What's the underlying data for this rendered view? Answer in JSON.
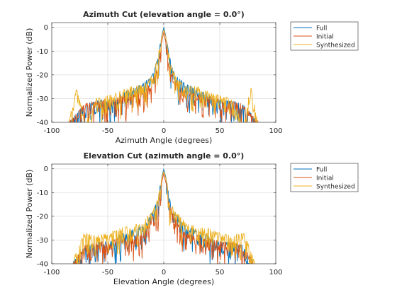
{
  "colors": {
    "full": "#0072BD",
    "initial": "#D95319",
    "synthesized": "#EDB120",
    "grid": "#dfdfdf",
    "axis": "#262626"
  },
  "chart_data": [
    {
      "type": "line",
      "title": "Azimuth Cut (elevation angle = 0.0°)",
      "xlabel": "Azimuth Angle (degrees)",
      "ylabel": "Normalized Power (dB)",
      "xlim": [
        -100,
        100
      ],
      "ylim": [
        -40,
        2
      ],
      "xticks": [
        "-100",
        "-50",
        "0",
        "50",
        "100"
      ],
      "yticks": [
        "0",
        "-10",
        "-20",
        "-30",
        "-40"
      ],
      "grid": true,
      "legend_position": "outside-top-right",
      "series": [
        {
          "name": "Full",
          "x": [
            -85,
            -70,
            -60,
            -45,
            -40,
            -30,
            -20,
            -15,
            -10,
            -5,
            -3,
            0,
            3,
            5,
            10,
            15,
            20,
            30,
            40,
            45,
            60,
            70,
            85
          ],
          "values": [
            -40,
            -32,
            -31,
            -30,
            -28,
            -26,
            -24,
            -22,
            -20,
            -12,
            -6,
            0,
            -6,
            -12,
            -20,
            -22,
            -24,
            -26,
            -28,
            -30,
            -31,
            -32,
            -40
          ]
        },
        {
          "name": "Initial",
          "x": [
            -85,
            -70,
            -60,
            -45,
            -40,
            -30,
            -20,
            -15,
            -10,
            -5,
            -3,
            0,
            3,
            5,
            10,
            15,
            20,
            30,
            40,
            45,
            60,
            70,
            85
          ],
          "values": [
            -40,
            -32,
            -31,
            -30,
            -29,
            -28,
            -27,
            -25,
            -22,
            -16,
            -9,
            -2,
            -9,
            -16,
            -22,
            -25,
            -27,
            -28,
            -29,
            -30,
            -31,
            -32,
            -40
          ]
        },
        {
          "name": "Synthesized",
          "x": [
            -85,
            -78,
            -70,
            -60,
            -45,
            -40,
            -30,
            -20,
            -15,
            -10,
            -5,
            -3,
            0,
            3,
            5,
            10,
            15,
            20,
            30,
            40,
            45,
            60,
            70,
            78,
            85
          ],
          "values": [
            -40,
            -25,
            -40,
            -30,
            -28,
            -27,
            -25,
            -24,
            -23,
            -20,
            -12,
            -6,
            -1,
            -6,
            -12,
            -20,
            -23,
            -24,
            -25,
            -27,
            -28,
            -30,
            -40,
            -25,
            -40
          ]
        }
      ]
    },
    {
      "type": "line",
      "title": "Elevation Cut (azimuth angle = 0.0°)",
      "xlabel": "Elevation Angle (degrees)",
      "ylabel": "Normalized Power (dB)",
      "xlim": [
        -100,
        100
      ],
      "ylim": [
        -40,
        2
      ],
      "xticks": [
        "-100",
        "-50",
        "0",
        "50",
        "100"
      ],
      "yticks": [
        "0",
        "-10",
        "-20",
        "-30",
        "-40"
      ],
      "grid": true,
      "legend_position": "outside-top-right",
      "series": [
        {
          "name": "Full",
          "x": [
            -82,
            -70,
            -60,
            -45,
            -40,
            -30,
            -20,
            -15,
            -10,
            -5,
            -3,
            0,
            3,
            5,
            10,
            15,
            20,
            30,
            40,
            45,
            60,
            70,
            82
          ],
          "values": [
            -40,
            -32,
            -31,
            -30,
            -28,
            -26,
            -24,
            -22,
            -18,
            -12,
            -6,
            0,
            -6,
            -12,
            -18,
            -22,
            -24,
            -26,
            -28,
            -30,
            -31,
            -32,
            -40
          ]
        },
        {
          "name": "Initial",
          "x": [
            -82,
            -70,
            -60,
            -45,
            -40,
            -30,
            -20,
            -15,
            -10,
            -5,
            -3,
            0,
            3,
            5,
            10,
            15,
            20,
            30,
            40,
            45,
            60,
            70,
            82
          ],
          "values": [
            -40,
            -32,
            -31,
            -30,
            -29,
            -28,
            -27,
            -25,
            -20,
            -15,
            -8,
            -2,
            -8,
            -15,
            -20,
            -25,
            -27,
            -28,
            -29,
            -30,
            -31,
            -32,
            -40
          ]
        },
        {
          "name": "Synthesized",
          "x": [
            -82,
            -72,
            -60,
            -50,
            -45,
            -40,
            -30,
            -20,
            -15,
            -10,
            -5,
            -3,
            0,
            3,
            5,
            10,
            15,
            20,
            30,
            40,
            45,
            50,
            60,
            72,
            82
          ],
          "values": [
            -40,
            -27,
            -28,
            -27,
            -26,
            -25,
            -24,
            -23,
            -20,
            -18,
            -12,
            -6,
            -1,
            -6,
            -12,
            -18,
            -20,
            -23,
            -24,
            -25,
            -26,
            -27,
            -28,
            -27,
            -40
          ]
        }
      ]
    }
  ]
}
